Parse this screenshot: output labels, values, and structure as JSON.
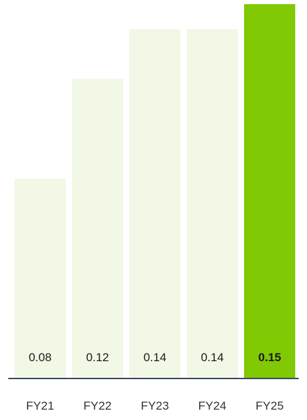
{
  "chart_data": {
    "type": "bar",
    "categories": [
      "FY21",
      "FY22",
      "FY23",
      "FY24",
      "FY25"
    ],
    "values": [
      0.08,
      0.12,
      0.14,
      0.14,
      0.15
    ],
    "value_labels": [
      "0.08",
      "0.12",
      "0.14",
      "0.14",
      "0.15"
    ],
    "highlight_index": 4,
    "ylim": [
      0,
      0.15
    ],
    "grid": false,
    "colors": {
      "bar": "#f1f8e6",
      "highlight": "#80c904",
      "axis": "#3a4a5c"
    }
  }
}
